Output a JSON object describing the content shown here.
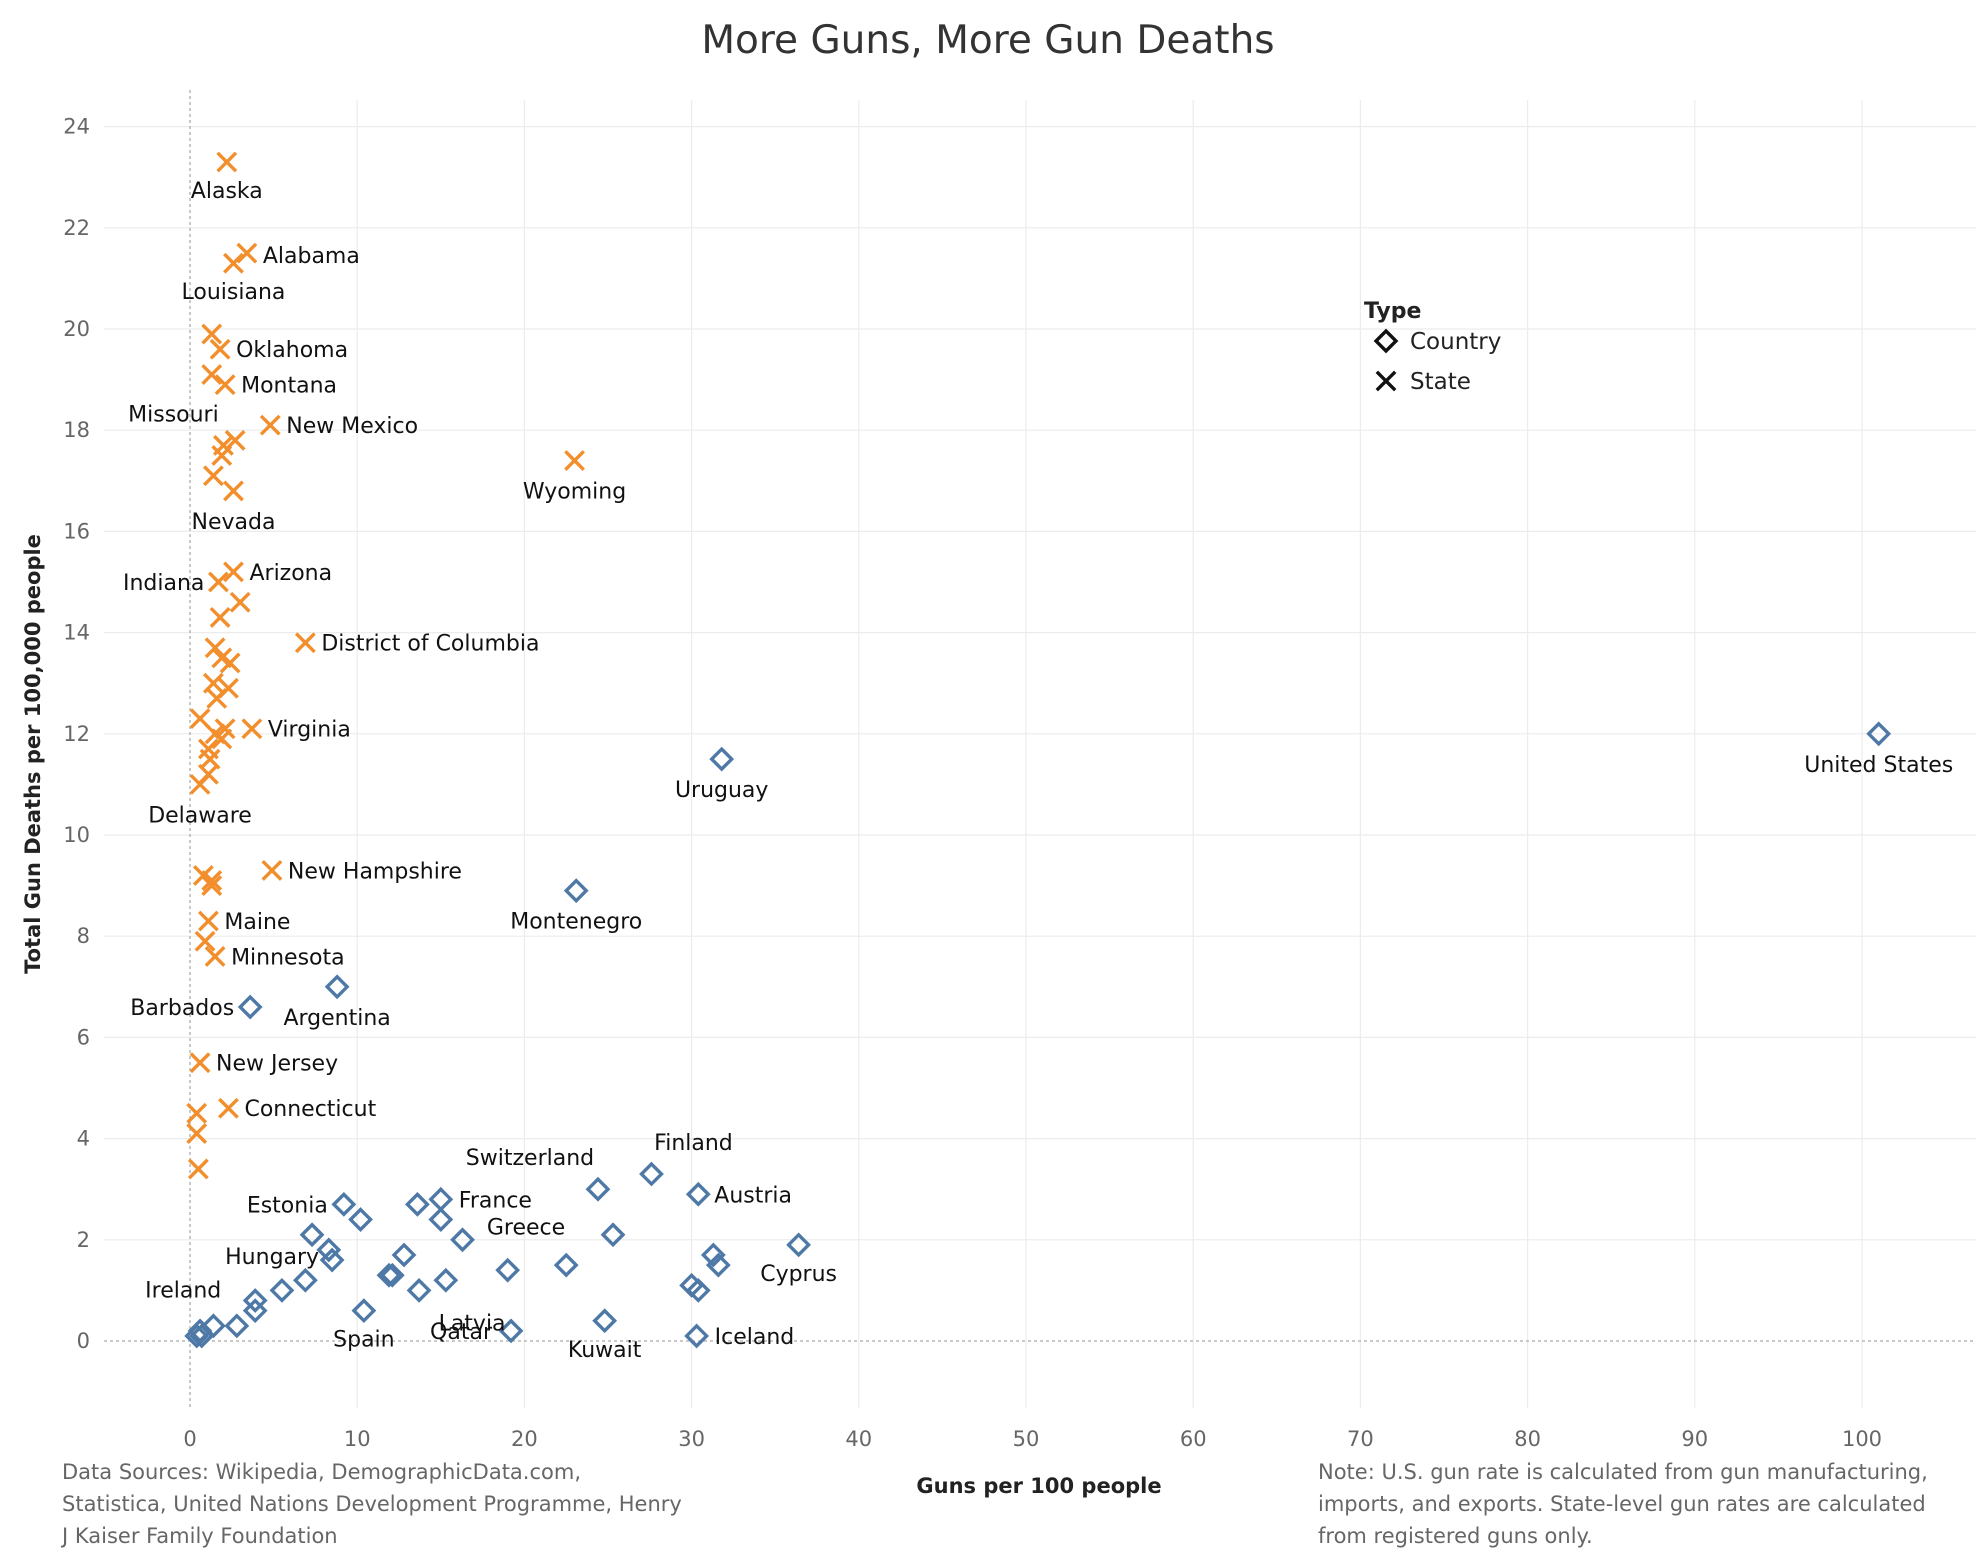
{
  "chart_data": {
    "type": "scatter",
    "title": "More Guns, More Gun Deaths",
    "xlabel": "Guns per 100 people",
    "ylabel": "Total Gun Deaths per 100,000 people",
    "xlim": [
      -5,
      106
    ],
    "ylim": [
      -1.3,
      25
    ],
    "x_ticks": [
      0,
      10,
      20,
      30,
      40,
      50,
      60,
      70,
      80,
      90,
      100
    ],
    "y_ticks": [
      0,
      2,
      4,
      6,
      8,
      10,
      12,
      14,
      16,
      18,
      20,
      22,
      24
    ],
    "grid": true,
    "legend": {
      "title": "Type",
      "position": "top-right",
      "entries": [
        {
          "name": "Country",
          "marker": "diamond"
        },
        {
          "name": "State",
          "marker": "x"
        }
      ]
    },
    "colors": {
      "Country": "#4e79a7",
      "State": "#f28e2b"
    },
    "series": [
      {
        "name": "State",
        "points": [
          {
            "x": 2.2,
            "y": 23.3,
            "label": "Alaska"
          },
          {
            "x": 3.4,
            "y": 21.5,
            "label": "Alabama"
          },
          {
            "x": 2.6,
            "y": 21.3,
            "label": "Louisiana"
          },
          {
            "x": 1.3,
            "y": 19.9,
            "label": ""
          },
          {
            "x": 1.8,
            "y": 19.6,
            "label": "Oklahoma"
          },
          {
            "x": 1.3,
            "y": 19.1,
            "label": ""
          },
          {
            "x": 2.1,
            "y": 18.9,
            "label": "Montana"
          },
          {
            "x": 4.8,
            "y": 18.1,
            "label": "New Mexico"
          },
          {
            "x": 2.7,
            "y": 17.8,
            "label": ""
          },
          {
            "x": 2.0,
            "y": 17.7,
            "label": "Missouri"
          },
          {
            "x": 1.9,
            "y": 17.5,
            "label": ""
          },
          {
            "x": 23.0,
            "y": 17.4,
            "label": "Wyoming"
          },
          {
            "x": 1.4,
            "y": 17.1,
            "label": ""
          },
          {
            "x": 2.6,
            "y": 16.8,
            "label": "Nevada"
          },
          {
            "x": 2.6,
            "y": 15.2,
            "label": "Arizona"
          },
          {
            "x": 1.7,
            "y": 15.0,
            "label": "Indiana"
          },
          {
            "x": 3.0,
            "y": 14.6,
            "label": ""
          },
          {
            "x": 1.8,
            "y": 14.3,
            "label": ""
          },
          {
            "x": 6.9,
            "y": 13.8,
            "label": "District of Columbia"
          },
          {
            "x": 1.5,
            "y": 13.7,
            "label": ""
          },
          {
            "x": 1.9,
            "y": 13.5,
            "label": ""
          },
          {
            "x": 2.4,
            "y": 13.4,
            "label": ""
          },
          {
            "x": 1.4,
            "y": 13.0,
            "label": ""
          },
          {
            "x": 2.3,
            "y": 12.9,
            "label": ""
          },
          {
            "x": 1.6,
            "y": 12.7,
            "label": ""
          },
          {
            "x": 0.6,
            "y": 12.3,
            "label": ""
          },
          {
            "x": 3.7,
            "y": 12.1,
            "label": "Virginia"
          },
          {
            "x": 2.1,
            "y": 12.1,
            "label": ""
          },
          {
            "x": 1.5,
            "y": 12.0,
            "label": ""
          },
          {
            "x": 1.9,
            "y": 11.9,
            "label": ""
          },
          {
            "x": 1.1,
            "y": 11.7,
            "label": ""
          },
          {
            "x": 1.2,
            "y": 11.5,
            "label": ""
          },
          {
            "x": 1.1,
            "y": 11.2,
            "label": ""
          },
          {
            "x": 0.6,
            "y": 11.0,
            "label": "Delaware"
          },
          {
            "x": 4.9,
            "y": 9.3,
            "label": "New Hampshire"
          },
          {
            "x": 0.8,
            "y": 9.2,
            "label": ""
          },
          {
            "x": 1.3,
            "y": 9.1,
            "label": ""
          },
          {
            "x": 1.3,
            "y": 9.0,
            "label": ""
          },
          {
            "x": 1.1,
            "y": 8.3,
            "label": "Maine"
          },
          {
            "x": 0.9,
            "y": 7.9,
            "label": ""
          },
          {
            "x": 1.5,
            "y": 7.6,
            "label": "Minnesota"
          },
          {
            "x": 0.6,
            "y": 5.5,
            "label": "New Jersey"
          },
          {
            "x": 2.3,
            "y": 4.6,
            "label": "Connecticut"
          },
          {
            "x": 0.4,
            "y": 4.5,
            "label": ""
          },
          {
            "x": 0.4,
            "y": 4.1,
            "label": ""
          },
          {
            "x": 0.5,
            "y": 3.4,
            "label": ""
          }
        ]
      },
      {
        "name": "Country",
        "points": [
          {
            "x": 101.0,
            "y": 12.0,
            "label": "United States"
          },
          {
            "x": 31.8,
            "y": 11.5,
            "label": "Uruguay"
          },
          {
            "x": 23.1,
            "y": 8.9,
            "label": "Montenegro"
          },
          {
            "x": 8.8,
            "y": 7.0,
            "label": "Argentina"
          },
          {
            "x": 3.6,
            "y": 6.6,
            "label": "Barbados"
          },
          {
            "x": 27.6,
            "y": 3.3,
            "label": "Finland"
          },
          {
            "x": 24.4,
            "y": 3.0,
            "label": "Switzerland"
          },
          {
            "x": 30.4,
            "y": 2.9,
            "label": "Austria"
          },
          {
            "x": 15.0,
            "y": 2.8,
            "label": "France"
          },
          {
            "x": 9.2,
            "y": 2.7,
            "label": "Estonia"
          },
          {
            "x": 13.6,
            "y": 2.7,
            "label": ""
          },
          {
            "x": 10.2,
            "y": 2.4,
            "label": ""
          },
          {
            "x": 15.0,
            "y": 2.4,
            "label": ""
          },
          {
            "x": 7.3,
            "y": 2.1,
            "label": ""
          },
          {
            "x": 25.3,
            "y": 2.1,
            "label": "Greece"
          },
          {
            "x": 16.3,
            "y": 2.0,
            "label": ""
          },
          {
            "x": 36.4,
            "y": 1.9,
            "label": "Cyprus"
          },
          {
            "x": 8.3,
            "y": 1.8,
            "label": ""
          },
          {
            "x": 31.3,
            "y": 1.7,
            "label": ""
          },
          {
            "x": 12.8,
            "y": 1.7,
            "label": ""
          },
          {
            "x": 8.5,
            "y": 1.6,
            "label": "Hungary"
          },
          {
            "x": 22.5,
            "y": 1.5,
            "label": ""
          },
          {
            "x": 31.6,
            "y": 1.5,
            "label": ""
          },
          {
            "x": 19.0,
            "y": 1.4,
            "label": ""
          },
          {
            "x": 11.9,
            "y": 1.3,
            "label": ""
          },
          {
            "x": 12.1,
            "y": 1.3,
            "label": ""
          },
          {
            "x": 6.9,
            "y": 1.2,
            "label": ""
          },
          {
            "x": 15.3,
            "y": 1.2,
            "label": ""
          },
          {
            "x": 30.0,
            "y": 1.1,
            "label": ""
          },
          {
            "x": 30.4,
            "y": 1.0,
            "label": ""
          },
          {
            "x": 13.7,
            "y": 1.0,
            "label": "Latvia"
          },
          {
            "x": 5.5,
            "y": 1.0,
            "label": ""
          },
          {
            "x": 3.9,
            "y": 0.8,
            "label": "Ireland"
          },
          {
            "x": 10.4,
            "y": 0.6,
            "label": "Spain"
          },
          {
            "x": 3.9,
            "y": 0.6,
            "label": ""
          },
          {
            "x": 24.8,
            "y": 0.4,
            "label": "Kuwait"
          },
          {
            "x": 1.4,
            "y": 0.3,
            "label": ""
          },
          {
            "x": 2.8,
            "y": 0.3,
            "label": ""
          },
          {
            "x": 19.2,
            "y": 0.2,
            "label": "Qatar"
          },
          {
            "x": 0.6,
            "y": 0.2,
            "label": ""
          },
          {
            "x": 0.4,
            "y": 0.1,
            "label": ""
          },
          {
            "x": 0.7,
            "y": 0.1,
            "label": ""
          },
          {
            "x": 30.3,
            "y": 0.1,
            "label": "Iceland"
          }
        ]
      }
    ]
  },
  "footnotes": {
    "sources": "Data Sources: Wikipedia, DemographicData.com, Statistica, United Nations Development Programme, Henry J Kaiser Family Foundation",
    "note": "Note: U.S. gun rate is calculated from gun manufacturing, imports, and exports. State-level gun rates are calculated from registered guns only."
  }
}
